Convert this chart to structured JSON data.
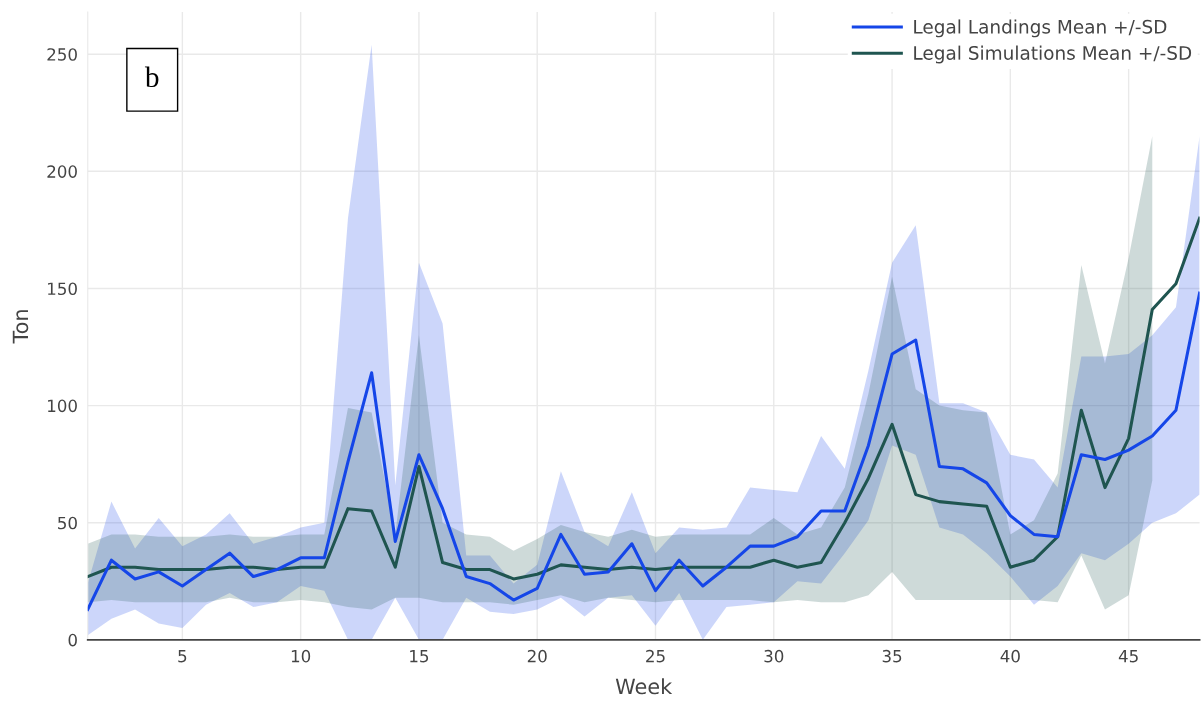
{
  "chart_data": {
    "type": "line",
    "xlabel": "Week",
    "ylabel": "Ton",
    "annotations": [
      "b"
    ],
    "x": [
      1,
      2,
      3,
      4,
      5,
      6,
      7,
      8,
      9,
      10,
      11,
      12,
      13,
      14,
      15,
      16,
      17,
      18,
      19,
      20,
      21,
      22,
      23,
      24,
      25,
      26,
      27,
      28,
      29,
      30,
      31,
      32,
      33,
      34,
      35,
      36,
      37,
      38,
      39,
      40,
      41,
      42,
      43,
      44,
      45,
      46,
      47,
      48
    ],
    "series": [
      {
        "name": "Legal Landings Mean +/-SD",
        "color": "#1546e8",
        "values": [
          13,
          34,
          26,
          29,
          23,
          30,
          37,
          27,
          30,
          35,
          35,
          76,
          114,
          42,
          79,
          56,
          27,
          24,
          17,
          22,
          45,
          28,
          29,
          41,
          21,
          34,
          23,
          31,
          40,
          40,
          44,
          55,
          55,
          83,
          122,
          128,
          74,
          73,
          67,
          53,
          45,
          44,
          79,
          77,
          81,
          87,
          98,
          148
        ],
        "upper": [
          24,
          59,
          39,
          52,
          40,
          45,
          54,
          41,
          44,
          48,
          50,
          180,
          254,
          66,
          161,
          135,
          36,
          36,
          24,
          32,
          72,
          46,
          40,
          63,
          37,
          48,
          47,
          48,
          65,
          64,
          63,
          87,
          73,
          115,
          161,
          177,
          101,
          101,
          97,
          79,
          77,
          65,
          121,
          121,
          122,
          130,
          142,
          215
        ],
        "lower": [
          2,
          9,
          13,
          7,
          5,
          15,
          20,
          14,
          16,
          23,
          21,
          0,
          0,
          18,
          0,
          0,
          18,
          12,
          11,
          13,
          18,
          10,
          18,
          19,
          6,
          20,
          0,
          14,
          15,
          16,
          25,
          24,
          37,
          51,
          83,
          79,
          48,
          45,
          37,
          27,
          15,
          23,
          37,
          34,
          41,
          50,
          54,
          62
        ]
      },
      {
        "name": "Legal Simulations Mean +/-SD",
        "color": "#1f5550",
        "values": [
          27,
          31,
          31,
          30,
          30,
          30,
          31,
          31,
          30,
          31,
          31,
          56,
          55,
          31,
          74,
          33,
          30,
          30,
          26,
          28,
          32,
          31,
          30,
          31,
          30,
          31,
          31,
          31,
          31,
          34,
          31,
          33,
          50,
          69,
          92,
          62,
          59,
          58,
          57,
          31,
          34,
          44,
          98,
          65,
          86,
          141,
          152,
          180
        ],
        "upper": [
          41,
          45,
          45,
          44,
          44,
          44,
          45,
          44,
          44,
          45,
          45,
          99,
          97,
          45,
          130,
          50,
          45,
          44,
          38,
          43,
          49,
          46,
          44,
          47,
          44,
          45,
          45,
          45,
          45,
          52,
          45,
          48,
          65,
          105,
          155,
          107,
          100,
          98,
          97,
          45,
          51,
          71,
          160,
          118,
          163,
          215,
          null,
          null
        ],
        "lower": [
          16,
          17,
          16,
          16,
          16,
          16,
          18,
          16,
          16,
          17,
          16,
          14,
          13,
          18,
          18,
          16,
          16,
          16,
          15,
          17,
          19,
          16,
          18,
          17,
          16,
          17,
          17,
          17,
          17,
          16,
          17,
          16,
          16,
          19,
          29,
          17,
          17,
          17,
          17,
          17,
          17,
          16,
          36,
          13,
          19,
          68,
          null,
          null
        ]
      }
    ],
    "xlim": [
      1,
      48
    ],
    "ylim": [
      0,
      268
    ],
    "xticks": [
      5,
      10,
      15,
      20,
      25,
      30,
      35,
      40,
      45
    ],
    "yticks": [
      0,
      50,
      100,
      150,
      200,
      250
    ],
    "grid": true,
    "legend": "top right"
  }
}
